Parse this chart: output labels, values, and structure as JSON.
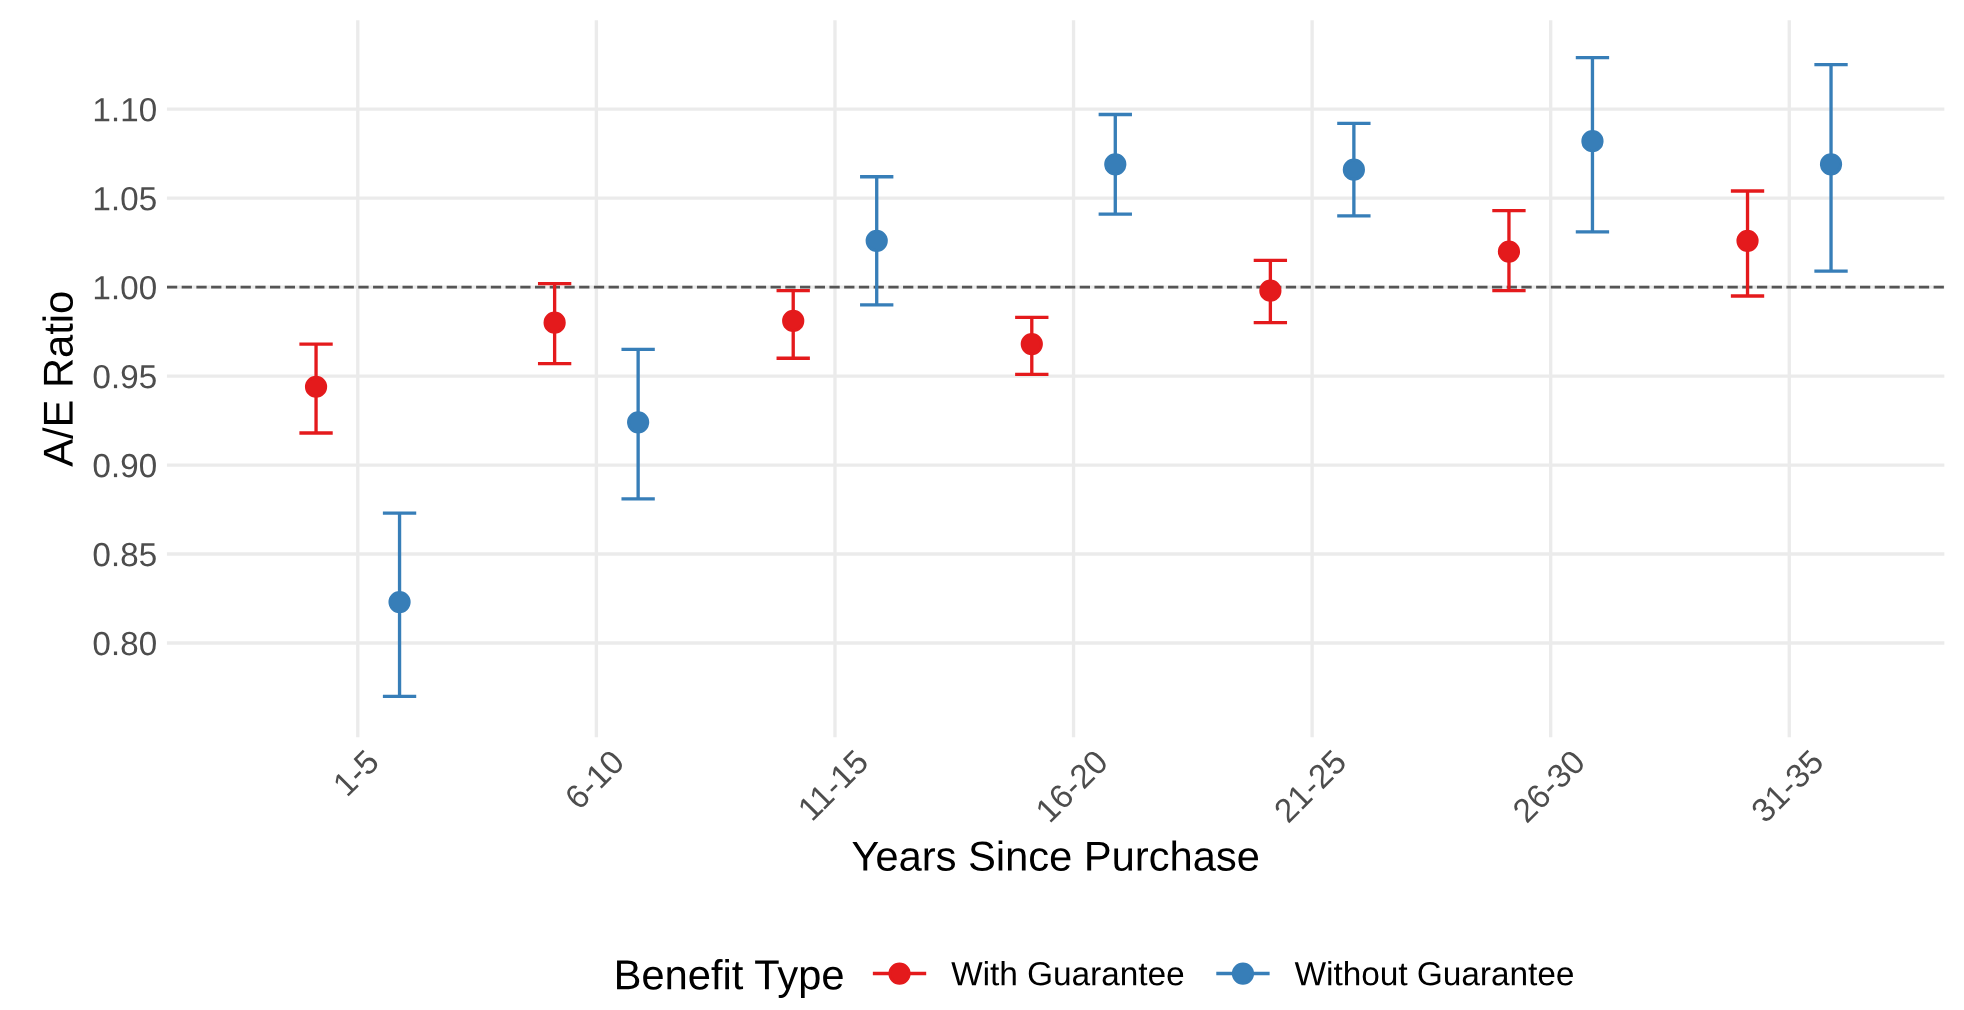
{
  "chart_data": {
    "type": "scatter",
    "xlabel": "Years Since Purchase",
    "ylabel": "A/E Ratio",
    "legend_title": "Benefit Type",
    "categories": [
      "1-5",
      "6-10",
      "11-15",
      "16-20",
      "21-25",
      "26-30",
      "31-35"
    ],
    "series": [
      {
        "name": "With Guarantee",
        "color": "#e41a1c",
        "values": [
          0.944,
          0.98,
          0.981,
          0.968,
          0.998,
          1.02,
          1.026
        ],
        "errors": [
          [
            0.918,
            0.968
          ],
          [
            0.957,
            1.002
          ],
          [
            0.96,
            0.998
          ],
          [
            0.951,
            0.983
          ],
          [
            0.98,
            1.015
          ],
          [
            0.998,
            1.043
          ],
          [
            0.995,
            1.054
          ]
        ]
      },
      {
        "name": "Without Guarantee",
        "color": "#377eb8",
        "values": [
          0.823,
          0.924,
          1.026,
          1.069,
          1.066,
          1.082,
          1.069
        ],
        "errors": [
          [
            0.77,
            0.873
          ],
          [
            0.881,
            0.965
          ],
          [
            0.99,
            1.062
          ],
          [
            1.041,
            1.097
          ],
          [
            1.04,
            1.092
          ],
          [
            1.031,
            1.129
          ],
          [
            1.009,
            1.125
          ]
        ]
      }
    ],
    "ylim": [
      0.747,
      1.15
    ],
    "yticks": [
      {
        "value": 0.8,
        "label": "0.80"
      },
      {
        "value": 0.85,
        "label": "0.85"
      },
      {
        "value": 0.9,
        "label": "0.90"
      },
      {
        "value": 0.95,
        "label": "0.95"
      },
      {
        "value": 1.0,
        "label": "1.00"
      },
      {
        "value": 1.05,
        "label": "1.05"
      },
      {
        "value": 1.1,
        "label": "1.10"
      }
    ],
    "ref_lines": [
      {
        "axis": "y",
        "value": 1.0,
        "line_style": "dashed",
        "color": "#555555"
      }
    ],
    "grid": true,
    "legend": "bottom",
    "marker": "circle"
  }
}
